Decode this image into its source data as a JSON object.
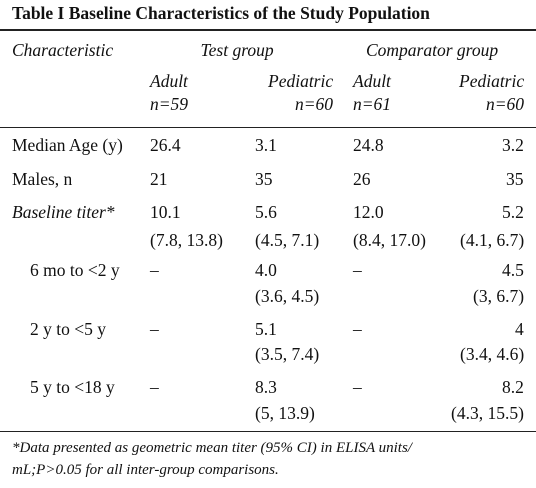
{
  "table": {
    "title": "Table I  Baseline Characteristics of the Study Population",
    "header": {
      "characteristic": "Characteristic",
      "groups": [
        "Test group",
        "Comparator group"
      ],
      "subcolumns": [
        {
          "label": "Adult",
          "n": "n=59"
        },
        {
          "label": "Pediatric",
          "n": "n=60"
        },
        {
          "label": "Adult",
          "n": "n=61"
        },
        {
          "label": "Pediatric",
          "n": "n=60"
        }
      ]
    },
    "rows": [
      {
        "label": "Median Age (y)",
        "cells": [
          [
            "26.4"
          ],
          [
            "3.1"
          ],
          [
            "24.8"
          ],
          [
            "3.2"
          ]
        ]
      },
      {
        "label": "Males, n",
        "cells": [
          [
            "21"
          ],
          [
            "35"
          ],
          [
            "26"
          ],
          [
            "35"
          ]
        ]
      },
      {
        "label": "Baseline titer*",
        "cells": [
          [
            "10.1",
            "(7.8, 13.8)"
          ],
          [
            "5.6",
            "(4.5, 7.1)"
          ],
          [
            "12.0",
            "(8.4, 17.0)"
          ],
          [
            "5.2",
            "(4.1, 6.7)"
          ]
        ]
      },
      {
        "label": "6 mo to <2 y",
        "cells": [
          [
            "–"
          ],
          [
            "4.0",
            "(3.6, 4.5)"
          ],
          [
            "–"
          ],
          [
            "4.5",
            "(3, 6.7)"
          ]
        ]
      },
      {
        "label": "2 y to <5 y",
        "cells": [
          [
            "–"
          ],
          [
            "5.1",
            "(3.5, 7.4)"
          ],
          [
            "–"
          ],
          [
            "4",
            "(3.4, 4.6)"
          ]
        ]
      },
      {
        "label": "5 y to <18 y",
        "cells": [
          [
            "–"
          ],
          [
            "8.3",
            "(5, 13.9)"
          ],
          [
            "–"
          ],
          [
            "8.2",
            "(4.3, 15.5)"
          ]
        ]
      }
    ],
    "footnote": [
      "*Data presented as geometric mean titer (95% CI) in ELISA units/",
      "mL;P>0.05 for all inter-group comparisons."
    ]
  }
}
